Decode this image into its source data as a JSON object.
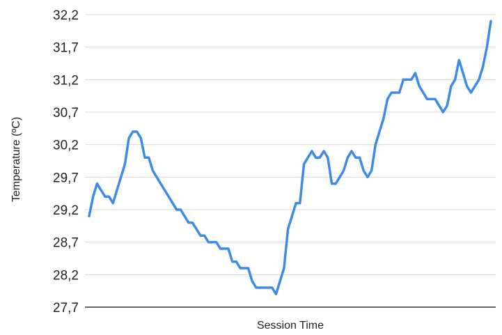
{
  "chart_data": {
    "type": "line",
    "xlabel": "Session Time",
    "ylabel": "Temperature (ºC)",
    "ylim": [
      27.7,
      32.2
    ],
    "yticks": [
      "27,7",
      "28,2",
      "28,7",
      "29,2",
      "29,7",
      "30,2",
      "30,7",
      "31,2",
      "31,7",
      "32,2"
    ],
    "grid": true,
    "legend": "none",
    "color": "#3d8be8",
    "series": [
      {
        "values": [
          29.1,
          29.4,
          29.6,
          29.5,
          29.4,
          29.4,
          29.3,
          29.5,
          29.7,
          29.9,
          30.3,
          30.4,
          30.4,
          30.3,
          30.0,
          30.0,
          29.8,
          29.7,
          29.6,
          29.5,
          29.4,
          29.3,
          29.2,
          29.2,
          29.1,
          29.0,
          29.0,
          28.9,
          28.8,
          28.8,
          28.7,
          28.7,
          28.7,
          28.6,
          28.6,
          28.6,
          28.4,
          28.4,
          28.3,
          28.3,
          28.3,
          28.1,
          28.0,
          28.0,
          28.0,
          28.0,
          28.0,
          27.9,
          28.1,
          28.3,
          28.9,
          29.1,
          29.3,
          29.3,
          29.9,
          30.0,
          30.1,
          30.0,
          30.0,
          30.1,
          30.0,
          29.6,
          29.6,
          29.7,
          29.8,
          30.0,
          30.1,
          30.0,
          30.0,
          29.8,
          29.7,
          29.8,
          30.2,
          30.4,
          30.6,
          30.9,
          31.0,
          31.0,
          31.0,
          31.2,
          31.2,
          31.2,
          31.3,
          31.1,
          31.0,
          30.9,
          30.9,
          30.9,
          30.8,
          30.7,
          30.8,
          31.1,
          31.2,
          31.5,
          31.3,
          31.1,
          31.0,
          31.1,
          31.2,
          31.4,
          31.7,
          32.1
        ]
      }
    ]
  }
}
